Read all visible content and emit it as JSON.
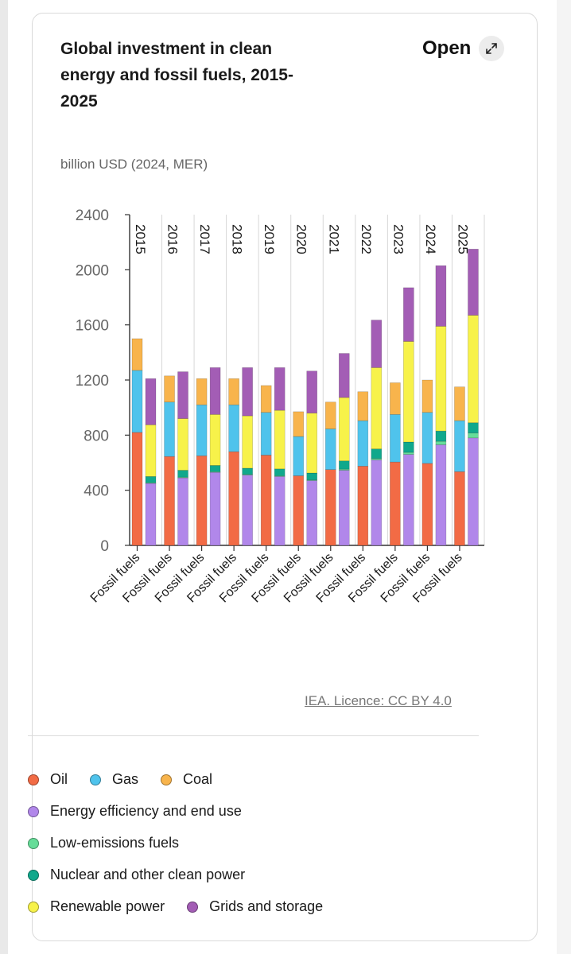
{
  "card": {
    "title": "Global investment in clean energy and fossil fuels, 2015-2025",
    "open_label": "Open",
    "unit": "billion USD (2024, MER)",
    "licence": "IEA. Licence: CC BY 4.0"
  },
  "colors": {
    "oil": "#f26b45",
    "gas": "#4fc3ec",
    "coal": "#f8b44c",
    "efficiency": "#b187ea",
    "lowemission": "#66dd99",
    "nuclear": "#10a88c",
    "renewable": "#f7f24a",
    "grids": "#a35db5"
  },
  "legend": {
    "row1": [
      "Oil",
      "Gas",
      "Coal"
    ],
    "row2": [
      "Energy efficiency and end use"
    ],
    "row3": [
      "Low-emissions fuels"
    ],
    "row4": [
      "Nuclear and other clean power"
    ],
    "row5": [
      "Renewable power",
      "Grids and storage"
    ]
  },
  "chart_data": {
    "type": "bar",
    "stacked": true,
    "title": "Global investment in clean energy and fossil fuels, 2015-2025",
    "ylabel": "billion USD (2024, MER)",
    "ylim": [
      0,
      2400
    ],
    "yticks": [
      0,
      400,
      800,
      1200,
      1600,
      2000,
      2400
    ],
    "years": [
      "2015",
      "2016",
      "2017",
      "2018",
      "2019",
      "2020",
      "2021",
      "2022",
      "2023",
      "2024",
      "2025"
    ],
    "x_label": "Fossil fuels",
    "grid": "vertical",
    "fossil": [
      {
        "name": "Oil",
        "key": "oil",
        "values": [
          820,
          645,
          650,
          680,
          655,
          505,
          550,
          575,
          605,
          595,
          535
        ]
      },
      {
        "name": "Gas",
        "key": "gas",
        "values": [
          450,
          395,
          370,
          340,
          310,
          285,
          295,
          330,
          345,
          370,
          370
        ]
      },
      {
        "name": "Coal",
        "key": "coal",
        "values": [
          230,
          190,
          190,
          190,
          195,
          180,
          195,
          210,
          230,
          235,
          245
        ]
      }
    ],
    "clean": [
      {
        "name": "Energy efficiency and end use",
        "key": "efficiency",
        "values": [
          450,
          490,
          530,
          510,
          500,
          470,
          545,
          620,
          660,
          730,
          780
        ]
      },
      {
        "name": "Low-emissions fuels",
        "key": "lowemission",
        "values": [
          5,
          5,
          5,
          5,
          5,
          5,
          8,
          10,
          15,
          25,
          35
        ]
      },
      {
        "name": "Nuclear and other clean power",
        "key": "nuclear",
        "values": [
          45,
          50,
          45,
          45,
          50,
          50,
          60,
          70,
          75,
          75,
          75
        ]
      },
      {
        "name": "Renewable power",
        "key": "renewable",
        "values": [
          375,
          375,
          370,
          380,
          425,
          435,
          460,
          590,
          730,
          760,
          780
        ]
      },
      {
        "name": "Grids and storage",
        "key": "grids",
        "values": [
          335,
          340,
          340,
          350,
          310,
          305,
          320,
          345,
          390,
          440,
          480
        ]
      }
    ]
  }
}
